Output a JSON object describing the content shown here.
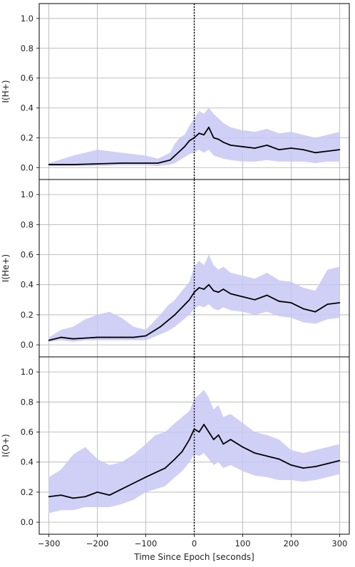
{
  "chart_data": [
    {
      "type": "line",
      "ylabel": "I(H+)",
      "xlabel": "",
      "xlim": [
        -320,
        320
      ],
      "ylim": [
        -0.08,
        1.1
      ],
      "yticks": [
        0.0,
        0.2,
        0.4,
        0.6,
        0.8,
        1.0
      ],
      "ytick_labels": [
        "0.0",
        "0.2",
        "0.4",
        "0.6",
        "0.8",
        "1.0"
      ],
      "grid": true,
      "epoch_line_x": 0,
      "series": [
        {
          "values_role": "mean",
          "color": "#000000",
          "x": [
            -300,
            -250,
            -200,
            -150,
            -100,
            -75,
            -50,
            -40,
            -30,
            -20,
            -10,
            0,
            10,
            20,
            30,
            40,
            50,
            60,
            75,
            100,
            125,
            150,
            175,
            200,
            225,
            250,
            275,
            300
          ],
          "y": [
            0.02,
            0.02,
            0.025,
            0.03,
            0.03,
            0.03,
            0.05,
            0.08,
            0.11,
            0.14,
            0.18,
            0.2,
            0.23,
            0.22,
            0.27,
            0.2,
            0.19,
            0.17,
            0.15,
            0.14,
            0.13,
            0.15,
            0.12,
            0.13,
            0.12,
            0.1,
            0.11,
            0.12
          ]
        },
        {
          "values_role": "spread_band",
          "color": "#c8c8f5",
          "x": [
            -300,
            -250,
            -200,
            -150,
            -100,
            -75,
            -50,
            -40,
            -30,
            -20,
            -10,
            0,
            10,
            20,
            30,
            40,
            50,
            60,
            75,
            100,
            125,
            150,
            175,
            200,
            225,
            250,
            275,
            300
          ],
          "lower": [
            0.01,
            0.01,
            0.01,
            0.015,
            0.015,
            0.01,
            0.02,
            0.03,
            0.05,
            0.07,
            0.09,
            0.1,
            0.12,
            0.1,
            0.12,
            0.08,
            0.07,
            0.06,
            0.05,
            0.04,
            0.04,
            0.05,
            0.04,
            0.04,
            0.04,
            0.03,
            0.04,
            0.04
          ],
          "upper": [
            0.03,
            0.08,
            0.12,
            0.1,
            0.08,
            0.06,
            0.1,
            0.16,
            0.2,
            0.22,
            0.28,
            0.33,
            0.38,
            0.36,
            0.4,
            0.36,
            0.33,
            0.3,
            0.27,
            0.25,
            0.24,
            0.26,
            0.23,
            0.24,
            0.22,
            0.2,
            0.22,
            0.24
          ]
        }
      ]
    },
    {
      "type": "line",
      "ylabel": "I(He+)",
      "xlabel": "",
      "xlim": [
        -320,
        320
      ],
      "ylim": [
        -0.08,
        1.1
      ],
      "yticks": [
        0.0,
        0.2,
        0.4,
        0.6,
        0.8,
        1.0
      ],
      "ytick_labels": [
        "0.0",
        "0.2",
        "0.4",
        "0.6",
        "0.8",
        "1.0"
      ],
      "grid": true,
      "epoch_line_x": 0,
      "series": [
        {
          "values_role": "mean",
          "color": "#000000",
          "x": [
            -300,
            -275,
            -250,
            -225,
            -200,
            -175,
            -150,
            -125,
            -100,
            -85,
            -70,
            -55,
            -40,
            -25,
            -10,
            0,
            10,
            20,
            30,
            40,
            50,
            60,
            75,
            100,
            125,
            150,
            175,
            200,
            225,
            250,
            275,
            300
          ],
          "y": [
            0.03,
            0.05,
            0.04,
            0.045,
            0.05,
            0.05,
            0.05,
            0.05,
            0.06,
            0.09,
            0.12,
            0.16,
            0.2,
            0.25,
            0.3,
            0.35,
            0.38,
            0.37,
            0.4,
            0.36,
            0.35,
            0.37,
            0.34,
            0.32,
            0.3,
            0.33,
            0.29,
            0.28,
            0.24,
            0.22,
            0.27,
            0.28
          ]
        },
        {
          "values_role": "spread_band",
          "color": "#c8c8f5",
          "x": [
            -300,
            -275,
            -250,
            -225,
            -200,
            -175,
            -150,
            -125,
            -100,
            -85,
            -70,
            -55,
            -40,
            -25,
            -10,
            0,
            10,
            20,
            30,
            40,
            50,
            60,
            75,
            100,
            125,
            150,
            175,
            200,
            225,
            250,
            275,
            300
          ],
          "lower": [
            0.02,
            0.03,
            0.02,
            0.03,
            0.03,
            0.03,
            0.03,
            0.03,
            0.03,
            0.05,
            0.07,
            0.09,
            0.12,
            0.16,
            0.2,
            0.24,
            0.26,
            0.25,
            0.27,
            0.24,
            0.23,
            0.25,
            0.23,
            0.22,
            0.2,
            0.22,
            0.19,
            0.18,
            0.15,
            0.14,
            0.17,
            0.18
          ],
          "upper": [
            0.05,
            0.1,
            0.12,
            0.17,
            0.2,
            0.22,
            0.18,
            0.12,
            0.1,
            0.15,
            0.2,
            0.26,
            0.3,
            0.36,
            0.42,
            0.52,
            0.56,
            0.53,
            0.6,
            0.53,
            0.5,
            0.52,
            0.48,
            0.46,
            0.44,
            0.48,
            0.43,
            0.42,
            0.38,
            0.36,
            0.5,
            0.52
          ]
        }
      ]
    },
    {
      "type": "line",
      "ylabel": "I(O+)",
      "xlabel": "Time Since Epoch [seconds]",
      "xlim": [
        -320,
        320
      ],
      "ylim": [
        -0.08,
        1.1
      ],
      "xticks": [
        -300,
        -200,
        -100,
        0,
        100,
        200,
        300
      ],
      "xtick_labels": [
        "−300",
        "−200",
        "−100",
        "0",
        "100",
        "200",
        "300"
      ],
      "yticks": [
        0.0,
        0.2,
        0.4,
        0.6,
        0.8,
        1.0
      ],
      "ytick_labels": [
        "0.0",
        "0.2",
        "0.4",
        "0.6",
        "0.8",
        "1.0"
      ],
      "grid": true,
      "epoch_line_x": 0,
      "series": [
        {
          "values_role": "mean",
          "color": "#000000",
          "x": [
            -300,
            -275,
            -250,
            -225,
            -200,
            -175,
            -150,
            -125,
            -100,
            -80,
            -60,
            -40,
            -25,
            -10,
            0,
            10,
            20,
            30,
            40,
            50,
            60,
            75,
            100,
            125,
            150,
            175,
            200,
            225,
            250,
            275,
            300
          ],
          "y": [
            0.17,
            0.18,
            0.16,
            0.17,
            0.2,
            0.18,
            0.22,
            0.26,
            0.3,
            0.33,
            0.36,
            0.42,
            0.47,
            0.55,
            0.62,
            0.6,
            0.65,
            0.6,
            0.55,
            0.58,
            0.52,
            0.55,
            0.5,
            0.46,
            0.44,
            0.42,
            0.38,
            0.36,
            0.37,
            0.39,
            0.41
          ]
        },
        {
          "values_role": "spread_band",
          "color": "#c8c8f5",
          "x": [
            -300,
            -275,
            -250,
            -225,
            -200,
            -175,
            -150,
            -125,
            -100,
            -80,
            -60,
            -40,
            -25,
            -10,
            0,
            10,
            20,
            30,
            40,
            50,
            60,
            75,
            100,
            125,
            150,
            175,
            200,
            225,
            250,
            275,
            300
          ],
          "lower": [
            0.06,
            0.08,
            0.08,
            0.1,
            0.1,
            0.1,
            0.12,
            0.15,
            0.2,
            0.22,
            0.24,
            0.3,
            0.34,
            0.4,
            0.45,
            0.44,
            0.46,
            0.42,
            0.38,
            0.4,
            0.36,
            0.38,
            0.34,
            0.31,
            0.3,
            0.28,
            0.28,
            0.27,
            0.28,
            0.3,
            0.32
          ],
          "upper": [
            0.3,
            0.35,
            0.45,
            0.5,
            0.42,
            0.38,
            0.4,
            0.45,
            0.52,
            0.58,
            0.6,
            0.66,
            0.7,
            0.74,
            0.82,
            0.85,
            0.88,
            0.83,
            0.75,
            0.78,
            0.7,
            0.72,
            0.66,
            0.6,
            0.58,
            0.55,
            0.48,
            0.46,
            0.48,
            0.5,
            0.52
          ]
        }
      ]
    }
  ]
}
